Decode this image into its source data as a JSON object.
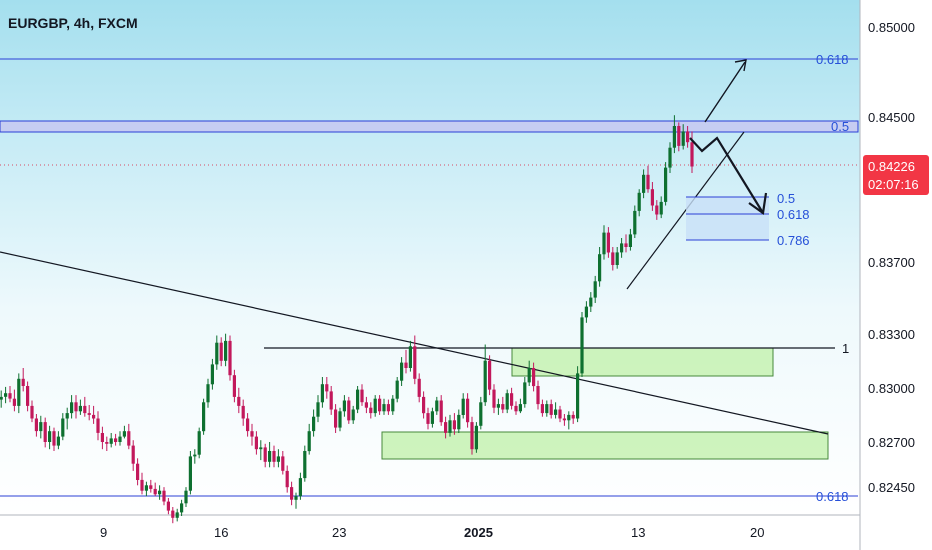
{
  "header": {
    "title": "EURGBP, 4h, FXCM"
  },
  "colors": {
    "background_top": "#a4dfee",
    "background_bottom": "#ffffff",
    "candle_up": "#0e7030",
    "candle_down": "#c2185b",
    "fib_line": "#2b3fd6",
    "fib_text": "#2650d8",
    "zone_fill": "#c6f1b2",
    "zone_stroke": "#46883a",
    "price_badge": "#f23645"
  },
  "price_badge": {
    "price": "0.84226",
    "countdown": "02:07:16"
  },
  "fib_labels": {
    "upper_618": "0.618",
    "upper_5": "0.5",
    "pull_5": "0.5",
    "pull_618": "0.618",
    "pull_786": "0.786",
    "lower_618": "0.618",
    "level_1": "1"
  },
  "chart_data": {
    "type": "candlestick",
    "symbol": "EURGBP",
    "timeframe": "4h",
    "source": "FXCM",
    "y_axis": {
      "ticks": [
        "0.85000",
        "0.84500",
        "0.83700",
        "0.83300",
        "0.83000",
        "0.82700",
        "0.82450"
      ],
      "range": [
        0.824,
        0.851
      ]
    },
    "x_axis": {
      "ticks": [
        "9",
        "16",
        "23",
        "2025",
        "13",
        "20"
      ]
    },
    "last_price": 0.84226,
    "fib_levels": {
      "upper_0.618": 0.8478,
      "upper_0.5": 0.8445,
      "level_1": 0.8328,
      "lower_0.618": 0.8245
    },
    "pullback_levels": {
      "0.5": 0.8405,
      "0.618": 0.8396,
      "0.786": 0.8381
    },
    "demand_zones": [
      [
        0.8307,
        0.8325
      ],
      [
        0.8258,
        0.8275
      ]
    ],
    "candles": [
      [
        1.2,
        0.82935,
        0.82985,
        0.8289,
        0.8295
      ],
      [
        5.6,
        0.8295,
        0.83005,
        0.82915,
        0.8297
      ],
      [
        10.0,
        0.8297,
        0.8301,
        0.8292,
        0.8294
      ],
      [
        14.4,
        0.8294,
        0.8299,
        0.8287,
        0.829
      ],
      [
        18.8,
        0.829,
        0.8308,
        0.8286,
        0.8305
      ],
      [
        23.2,
        0.8305,
        0.8311,
        0.8298,
        0.8301
      ],
      [
        27.6,
        0.8301,
        0.83035,
        0.8287,
        0.829
      ],
      [
        32.0,
        0.829,
        0.8293,
        0.8281,
        0.8283
      ],
      [
        36.4,
        0.8283,
        0.82855,
        0.8273,
        0.8276
      ],
      [
        40.8,
        0.8276,
        0.82845,
        0.8272,
        0.8281
      ],
      [
        45.2,
        0.8281,
        0.82835,
        0.8267,
        0.827
      ],
      [
        49.6,
        0.827,
        0.8279,
        0.8266,
        0.8276
      ],
      [
        54.0,
        0.8276,
        0.8278,
        0.8265,
        0.8268
      ],
      [
        58.4,
        0.8268,
        0.8276,
        0.8266,
        0.8273
      ],
      [
        62.8,
        0.8273,
        0.8286,
        0.8271,
        0.8283
      ],
      [
        67.2,
        0.8283,
        0.8289,
        0.8277,
        0.8286
      ],
      [
        71.6,
        0.8286,
        0.8296,
        0.8283,
        0.8292
      ],
      [
        76.0,
        0.8292,
        0.8296,
        0.8283,
        0.8287
      ],
      [
        80.4,
        0.8287,
        0.82935,
        0.8285,
        0.829
      ],
      [
        84.8,
        0.829,
        0.8295,
        0.8284,
        0.8286
      ],
      [
        89.2,
        0.8286,
        0.82905,
        0.8282,
        0.8285
      ],
      [
        93.6,
        0.8285,
        0.829,
        0.828,
        0.8283
      ],
      [
        98.0,
        0.8283,
        0.8287,
        0.8271,
        0.8275
      ],
      [
        102.4,
        0.8275,
        0.82785,
        0.8266,
        0.827
      ],
      [
        106.8,
        0.827,
        0.8273,
        0.8265,
        0.8269
      ],
      [
        111.2,
        0.8269,
        0.8275,
        0.8267,
        0.8272
      ],
      [
        115.6,
        0.8272,
        0.82745,
        0.8268,
        0.827
      ],
      [
        120.0,
        0.827,
        0.8276,
        0.8268,
        0.8273
      ],
      [
        124.4,
        0.8273,
        0.8279,
        0.8272,
        0.8276
      ],
      [
        128.8,
        0.8276,
        0.828,
        0.8266,
        0.8268
      ],
      [
        133.2,
        0.8268,
        0.8271,
        0.8254,
        0.8258
      ],
      [
        137.6,
        0.8258,
        0.8261,
        0.8246,
        0.8249
      ],
      [
        142.0,
        0.8249,
        0.8253,
        0.8241,
        0.8243
      ],
      [
        146.4,
        0.8243,
        0.8248,
        0.824,
        0.8246
      ],
      [
        150.8,
        0.8246,
        0.8249,
        0.8242,
        0.8244
      ],
      [
        155.2,
        0.8244,
        0.82475,
        0.824,
        0.8241
      ],
      [
        159.6,
        0.8241,
        0.8246,
        0.8238,
        0.8243
      ],
      [
        164.0,
        0.8243,
        0.8245,
        0.8235,
        0.8237
      ],
      [
        168.4,
        0.8237,
        0.8239,
        0.823,
        0.8232
      ],
      [
        172.8,
        0.8232,
        0.8234,
        0.8225,
        0.8228
      ],
      [
        177.2,
        0.8228,
        0.8233,
        0.8226,
        0.8231
      ],
      [
        181.6,
        0.8231,
        0.8238,
        0.8229,
        0.8236
      ],
      [
        186.0,
        0.8236,
        0.8245,
        0.8234,
        0.8243
      ],
      [
        190.4,
        0.8243,
        0.8265,
        0.8241,
        0.8262
      ],
      [
        194.8,
        0.8262,
        0.8266,
        0.8258,
        0.8263
      ],
      [
        199.2,
        0.8263,
        0.8278,
        0.8261,
        0.8276
      ],
      [
        203.6,
        0.8276,
        0.8294,
        0.8274,
        0.8292
      ],
      [
        208.0,
        0.8292,
        0.8305,
        0.8289,
        0.8302
      ],
      [
        212.4,
        0.8302,
        0.8316,
        0.8299,
        0.8313
      ],
      [
        216.8,
        0.8313,
        0.8329,
        0.831,
        0.8325
      ],
      [
        221.2,
        0.8325,
        0.8328,
        0.8312,
        0.8315
      ],
      [
        225.6,
        0.8315,
        0.833,
        0.8312,
        0.8326
      ],
      [
        230.0,
        0.8326,
        0.8329,
        0.8304,
        0.8307
      ],
      [
        234.4,
        0.8307,
        0.831,
        0.8292,
        0.8295
      ],
      [
        238.8,
        0.8295,
        0.83,
        0.8286,
        0.829
      ],
      [
        243.2,
        0.829,
        0.82935,
        0.8279,
        0.8283
      ],
      [
        247.6,
        0.8283,
        0.8286,
        0.8273,
        0.8276
      ],
      [
        252.0,
        0.8276,
        0.828,
        0.8268,
        0.8273
      ],
      [
        256.4,
        0.8273,
        0.8276,
        0.8263,
        0.8266
      ],
      [
        260.8,
        0.8266,
        0.8271,
        0.826,
        0.8267
      ],
      [
        265.2,
        0.8267,
        0.8269,
        0.8256,
        0.8259
      ],
      [
        269.6,
        0.8259,
        0.827,
        0.8256,
        0.8265
      ],
      [
        274.0,
        0.8265,
        0.8268,
        0.8256,
        0.8259
      ],
      [
        278.4,
        0.8259,
        0.8266,
        0.8256,
        0.8262
      ],
      [
        282.8,
        0.8262,
        0.8265,
        0.8252,
        0.8254
      ],
      [
        287.2,
        0.8254,
        0.8257,
        0.8242,
        0.8245
      ],
      [
        291.6,
        0.8245,
        0.8248,
        0.8235,
        0.8238
      ],
      [
        296.0,
        0.8238,
        0.8242,
        0.8233,
        0.824
      ],
      [
        300.4,
        0.824,
        0.8253,
        0.8238,
        0.825
      ],
      [
        304.8,
        0.825,
        0.8268,
        0.8248,
        0.8265
      ],
      [
        309.2,
        0.8265,
        0.828,
        0.8263,
        0.8276
      ],
      [
        313.6,
        0.8276,
        0.8288,
        0.8273,
        0.8284
      ],
      [
        318.0,
        0.8284,
        0.8296,
        0.8281,
        0.8292
      ],
      [
        322.4,
        0.8292,
        0.8306,
        0.8289,
        0.8302
      ],
      [
        326.8,
        0.8302,
        0.8306,
        0.8294,
        0.8298
      ],
      [
        331.2,
        0.8298,
        0.8301,
        0.8285,
        0.8288
      ],
      [
        335.6,
        0.8288,
        0.8291,
        0.8275,
        0.8278
      ],
      [
        340.0,
        0.8278,
        0.8289,
        0.8276,
        0.8287
      ],
      [
        344.4,
        0.8287,
        0.8296,
        0.8284,
        0.8293
      ],
      [
        348.8,
        0.8293,
        0.8295,
        0.828,
        0.8282
      ],
      [
        353.2,
        0.8282,
        0.829,
        0.828,
        0.8288
      ],
      [
        357.6,
        0.8288,
        0.8301,
        0.8286,
        0.8299
      ],
      [
        362.0,
        0.8299,
        0.8302,
        0.829,
        0.8292
      ],
      [
        366.4,
        0.8292,
        0.8295,
        0.8286,
        0.8289
      ],
      [
        370.8,
        0.8289,
        0.8292,
        0.8283,
        0.8286
      ],
      [
        375.2,
        0.8286,
        0.8296,
        0.8284,
        0.8294
      ],
      [
        379.6,
        0.8294,
        0.8296,
        0.8285,
        0.8287
      ],
      [
        384.0,
        0.8287,
        0.8294,
        0.8285,
        0.8291
      ],
      [
        388.4,
        0.8291,
        0.82935,
        0.8285,
        0.8287
      ],
      [
        392.8,
        0.8287,
        0.8296,
        0.8285,
        0.8294
      ],
      [
        397.2,
        0.8294,
        0.8306,
        0.8292,
        0.8304
      ],
      [
        401.6,
        0.8304,
        0.8317,
        0.8301,
        0.8314
      ],
      [
        406.0,
        0.8314,
        0.8321,
        0.8308,
        0.8311
      ],
      [
        410.4,
        0.8311,
        0.8326,
        0.8309,
        0.8323
      ],
      [
        414.8,
        0.8323,
        0.8329,
        0.8302,
        0.8305
      ],
      [
        419.2,
        0.8305,
        0.8308,
        0.8292,
        0.8295
      ],
      [
        423.6,
        0.8295,
        0.8298,
        0.8283,
        0.8286
      ],
      [
        428.0,
        0.8286,
        0.8289,
        0.8277,
        0.828
      ],
      [
        432.4,
        0.828,
        0.8289,
        0.8278,
        0.8287
      ],
      [
        436.8,
        0.8287,
        0.8295,
        0.8285,
        0.8293
      ],
      [
        441.2,
        0.8293,
        0.8296,
        0.8279,
        0.8281
      ],
      [
        445.6,
        0.8281,
        0.8284,
        0.8272,
        0.8275
      ],
      [
        450.0,
        0.8275,
        0.8285,
        0.8273,
        0.8282
      ],
      [
        454.4,
        0.8282,
        0.8286,
        0.8274,
        0.8277
      ],
      [
        458.8,
        0.8277,
        0.8288,
        0.8275,
        0.8285
      ],
      [
        463.2,
        0.8285,
        0.8297,
        0.8283,
        0.8294
      ],
      [
        467.6,
        0.8294,
        0.8297,
        0.8278,
        0.8281
      ],
      [
        472.0,
        0.8281,
        0.8284,
        0.8263,
        0.8266
      ],
      [
        476.4,
        0.8266,
        0.8281,
        0.8264,
        0.8279
      ],
      [
        480.8,
        0.8279,
        0.8295,
        0.8277,
        0.8292
      ],
      [
        485.2,
        0.8292,
        0.8324,
        0.829,
        0.8315
      ],
      [
        489.6,
        0.8315,
        0.8318,
        0.8296,
        0.8299
      ],
      [
        494.0,
        0.8299,
        0.8302,
        0.8286,
        0.8289
      ],
      [
        498.4,
        0.8289,
        0.8294,
        0.8285,
        0.8291
      ],
      [
        502.8,
        0.8291,
        0.8295,
        0.8286,
        0.8288
      ],
      [
        507.2,
        0.8288,
        0.8299,
        0.8286,
        0.8297
      ],
      [
        511.6,
        0.8297,
        0.83,
        0.8288,
        0.829
      ],
      [
        516.0,
        0.829,
        0.82925,
        0.8285,
        0.8287
      ],
      [
        520.4,
        0.8287,
        0.8294,
        0.8286,
        0.8291
      ],
      [
        524.8,
        0.8291,
        0.8306,
        0.8289,
        0.8303
      ],
      [
        529.2,
        0.8303,
        0.8315,
        0.8301,
        0.8311
      ],
      [
        533.6,
        0.8311,
        0.8314,
        0.8298,
        0.8301
      ],
      [
        538.0,
        0.8301,
        0.8304,
        0.8288,
        0.8291
      ],
      [
        542.4,
        0.8291,
        0.82935,
        0.8284,
        0.8286
      ],
      [
        546.8,
        0.8286,
        0.8293,
        0.8284,
        0.8291
      ],
      [
        551.2,
        0.8291,
        0.82935,
        0.8283,
        0.8285
      ],
      [
        555.6,
        0.8285,
        0.8292,
        0.8283,
        0.8288
      ],
      [
        560.0,
        0.8288,
        0.829,
        0.8281,
        0.8283
      ],
      [
        564.4,
        0.8283,
        0.82855,
        0.8279,
        0.8282
      ],
      [
        568.8,
        0.8282,
        0.8287,
        0.8277,
        0.8285
      ],
      [
        573.2,
        0.8285,
        0.8287,
        0.828,
        0.8283
      ],
      [
        577.6,
        0.8283,
        0.8312,
        0.8281,
        0.8308
      ],
      [
        582.0,
        0.8308,
        0.8342,
        0.8306,
        0.8339
      ],
      [
        586.4,
        0.8339,
        0.8348,
        0.8336,
        0.8345
      ],
      [
        590.8,
        0.8345,
        0.8353,
        0.8342,
        0.835
      ],
      [
        595.2,
        0.835,
        0.8362,
        0.8347,
        0.8359
      ],
      [
        599.6,
        0.8359,
        0.8378,
        0.8356,
        0.8374
      ],
      [
        604.0,
        0.8374,
        0.839,
        0.8371,
        0.8386
      ],
      [
        608.4,
        0.8386,
        0.8389,
        0.8372,
        0.8375
      ],
      [
        612.8,
        0.8375,
        0.8378,
        0.8365,
        0.8368
      ],
      [
        617.2,
        0.8368,
        0.8378,
        0.8366,
        0.8375
      ],
      [
        621.6,
        0.8375,
        0.8383,
        0.8372,
        0.838
      ],
      [
        626.0,
        0.838,
        0.8385,
        0.8375,
        0.8378
      ],
      [
        630.4,
        0.8378,
        0.8388,
        0.8376,
        0.8385
      ],
      [
        634.8,
        0.8385,
        0.8401,
        0.8383,
        0.8398
      ],
      [
        639.2,
        0.8398,
        0.841,
        0.8395,
        0.8408
      ],
      [
        643.6,
        0.8408,
        0.8421,
        0.8405,
        0.8418
      ],
      [
        648.0,
        0.8418,
        0.8423,
        0.8408,
        0.841
      ],
      [
        652.4,
        0.841,
        0.8414,
        0.8398,
        0.8401
      ],
      [
        656.8,
        0.8401,
        0.8404,
        0.8393,
        0.8396
      ],
      [
        661.2,
        0.8396,
        0.8406,
        0.8394,
        0.8403
      ],
      [
        665.6,
        0.8403,
        0.8425,
        0.8401,
        0.8422
      ],
      [
        670.0,
        0.8422,
        0.8436,
        0.8419,
        0.8433
      ],
      [
        674.4,
        0.8433,
        0.8451,
        0.843,
        0.8445
      ],
      [
        678.8,
        0.8445,
        0.8447,
        0.8431,
        0.8434
      ],
      [
        683.2,
        0.8434,
        0.8446,
        0.8432,
        0.8442
      ],
      [
        687.6,
        0.8442,
        0.8445,
        0.8433,
        0.8436
      ],
      [
        692.0,
        0.8436,
        0.8442,
        0.8419,
        0.84226
      ]
    ]
  }
}
